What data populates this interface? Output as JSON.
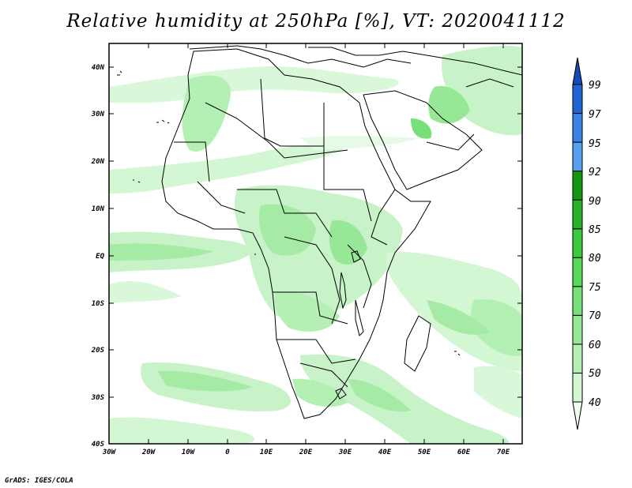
{
  "title": "Relative humidity at 250hPa [%], VT: 2020041112",
  "credit": "GrADS: IGES/COLA",
  "map": {
    "lon_range": [
      -30,
      75
    ],
    "lat_range": [
      -40,
      45
    ],
    "lon_ticks": [
      "30W",
      "20W",
      "10W",
      "0",
      "10E",
      "20E",
      "30E",
      "40E",
      "50E",
      "60E",
      "70E"
    ],
    "lat_ticks": [
      "40N",
      "30N",
      "20N",
      "10N",
      "EQ",
      "10S",
      "20S",
      "30S",
      "40S"
    ]
  },
  "colorbar": {
    "levels": [
      "40",
      "50",
      "60",
      "70",
      "75",
      "80",
      "85",
      "90",
      "92",
      "95",
      "97",
      "99"
    ],
    "colors": [
      "#f0fdf0",
      "#d2f7d2",
      "#b4f0b4",
      "#96e896",
      "#78e078",
      "#5ad85a",
      "#3cc83c",
      "#28b028",
      "#149614",
      "#5aa0f0",
      "#3c82e6",
      "#1e64d2",
      "#144bb4"
    ]
  }
}
